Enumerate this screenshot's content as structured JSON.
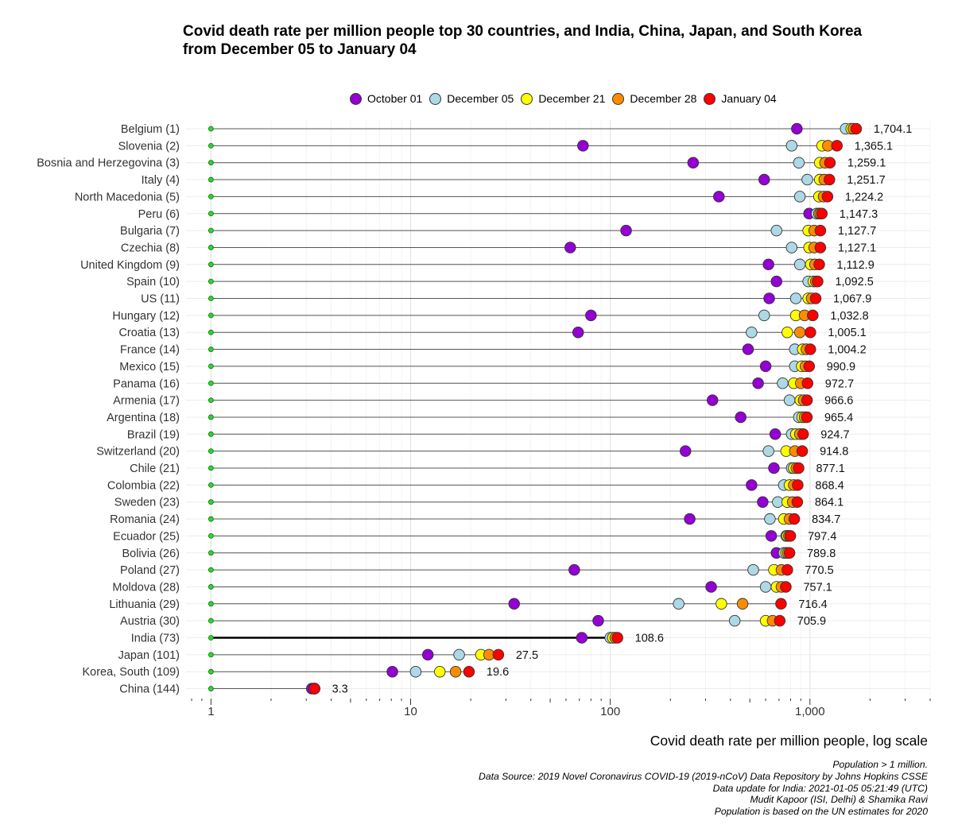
{
  "chart_data": {
    "type": "scatter",
    "title_lines": [
      "Covid death rate per million people top 30 countries, and India, China, Japan, and South Korea",
      "from December 05 to January 04"
    ],
    "xlabel": "Covid death rate per million people, log scale",
    "x_scale": "log10",
    "xlim": [
      0.75,
      4000
    ],
    "x_ticks": [
      1,
      10,
      100,
      1000
    ],
    "x_tick_labels": [
      "1",
      "10",
      "100",
      "1,000"
    ],
    "grid": true,
    "legend_position": "top",
    "series": [
      {
        "name": "October 01",
        "color": "#9400d3"
      },
      {
        "name": "December 05",
        "color": "#add8e6"
      },
      {
        "name": "December 21",
        "color": "#ffff00"
      },
      {
        "name": "December 28",
        "color": "#ff8c00"
      },
      {
        "name": "January 04",
        "color": "#ff0000"
      }
    ],
    "rows": [
      {
        "label": "Belgium (1)",
        "values": [
          860,
          1510,
          1610,
          1650,
          1704.1
        ],
        "value_label": "1,704.1"
      },
      {
        "label": "Slovenia (2)",
        "values": [
          73,
          810,
          1150,
          1230,
          1365.1
        ],
        "value_label": "1,365.1"
      },
      {
        "label": "Bosnia and Herzegovina (3)",
        "values": [
          260,
          880,
          1120,
          1190,
          1259.1
        ],
        "value_label": "1,259.1"
      },
      {
        "label": "Italy (4)",
        "values": [
          590,
          970,
          1120,
          1180,
          1251.7
        ],
        "value_label": "1,251.7"
      },
      {
        "label": "North Macedonia (5)",
        "values": [
          350,
          890,
          1110,
          1170,
          1224.2
        ],
        "value_label": "1,224.2"
      },
      {
        "label": "Peru (6)",
        "values": [
          990,
          1080,
          1110,
          1125,
          1147.3
        ],
        "value_label": "1,147.3"
      },
      {
        "label": "Bulgaria (7)",
        "values": [
          120,
          680,
          980,
          1050,
          1127.7
        ],
        "value_label": "1,127.7"
      },
      {
        "label": "Czechia (8)",
        "values": [
          63,
          810,
          990,
          1050,
          1127.1
        ],
        "value_label": "1,127.1"
      },
      {
        "label": "United Kingdom (9)",
        "values": [
          620,
          890,
          1010,
          1060,
          1112.9
        ],
        "value_label": "1,112.9"
      },
      {
        "label": "Spain (10)",
        "values": [
          680,
          980,
          1040,
          1070,
          1092.5
        ],
        "value_label": "1,092.5"
      },
      {
        "label": "US (11)",
        "values": [
          625,
          850,
          980,
          1020,
          1067.9
        ],
        "value_label": "1,067.9"
      },
      {
        "label": "Hungary (12)",
        "values": [
          80,
          590,
          850,
          940,
          1032.8
        ],
        "value_label": "1,032.8"
      },
      {
        "label": "Croatia (13)",
        "values": [
          69,
          510,
          770,
          890,
          1005.1
        ],
        "value_label": "1,005.1"
      },
      {
        "label": "France (14)",
        "values": [
          490,
          840,
          920,
          960,
          1004.2
        ],
        "value_label": "1,004.2"
      },
      {
        "label": "Mexico (15)",
        "values": [
          600,
          840,
          910,
          950,
          990.9
        ],
        "value_label": "990.9"
      },
      {
        "label": "Panama (16)",
        "values": [
          550,
          730,
          830,
          900,
          972.7
        ],
        "value_label": "972.7"
      },
      {
        "label": "Armenia (17)",
        "values": [
          325,
          790,
          895,
          930,
          966.6
        ],
        "value_label": "966.6"
      },
      {
        "label": "Argentina (18)",
        "values": [
          450,
          880,
          915,
          940,
          965.4
        ],
        "value_label": "965.4"
      },
      {
        "label": "Brazil (19)",
        "values": [
          670,
          810,
          850,
          890,
          924.7
        ],
        "value_label": "924.7"
      },
      {
        "label": "Switzerland (20)",
        "values": [
          238,
          620,
          760,
          840,
          914.8
        ],
        "value_label": "914.8"
      },
      {
        "label": "Chile (21)",
        "values": [
          660,
          810,
          830,
          855,
          877.1
        ],
        "value_label": "877.1"
      },
      {
        "label": "Colombia (22)",
        "values": [
          510,
          740,
          790,
          830,
          868.4
        ],
        "value_label": "868.4"
      },
      {
        "label": "Sweden (23)",
        "values": [
          580,
          690,
          770,
          820,
          864.1
        ],
        "value_label": "864.1"
      },
      {
        "label": "Romania (24)",
        "values": [
          250,
          630,
          740,
          790,
          834.7
        ],
        "value_label": "834.7"
      },
      {
        "label": "Ecuador (25)",
        "values": [
          640,
          760,
          770,
          785,
          797.4
        ],
        "value_label": "797.4"
      },
      {
        "label": "Bolivia (26)",
        "values": [
          680,
          740,
          760,
          775,
          789.8
        ],
        "value_label": "789.8"
      },
      {
        "label": "Poland (27)",
        "values": [
          66,
          520,
          660,
          720,
          770.5
        ],
        "value_label": "770.5"
      },
      {
        "label": "Moldova (28)",
        "values": [
          320,
          600,
          680,
          720,
          757.1
        ],
        "value_label": "757.1"
      },
      {
        "label": "Lithuania (29)",
        "values": [
          33,
          220,
          360,
          460,
          716.4
        ],
        "value_label": "716.4"
      },
      {
        "label": "Austria (30)",
        "values": [
          87,
          420,
          600,
          650,
          705.9
        ],
        "value_label": "705.9"
      },
      {
        "label": "India (73)",
        "values": [
          72,
          100,
          103,
          106,
          108.6
        ],
        "value_label": "108.6"
      },
      {
        "label": "Japan (101)",
        "values": [
          12.2,
          17.5,
          22.5,
          24.7,
          27.5
        ],
        "value_label": "27.5"
      },
      {
        "label": "Korea, South (109)",
        "values": [
          8.1,
          10.6,
          14,
          16.8,
          19.6
        ],
        "value_label": "19.6"
      },
      {
        "label": "China (144)",
        "values": [
          3.2,
          3.3,
          3.3,
          3.3,
          3.3
        ],
        "value_label": "3.3"
      }
    ],
    "notes": [
      "Population > 1 million.",
      "Data Source: 2019 Novel Coronavirus COVID-19 (2019-nCoV) Data Repository by Johns Hopkins CSSE",
      "Data update for India: 2021-01-05 05:21:49 (UTC)",
      "Mudit Kapoor (ISI, Delhi) & Shamika Ravi",
      "Population is based on the UN estimates for 2020"
    ]
  }
}
